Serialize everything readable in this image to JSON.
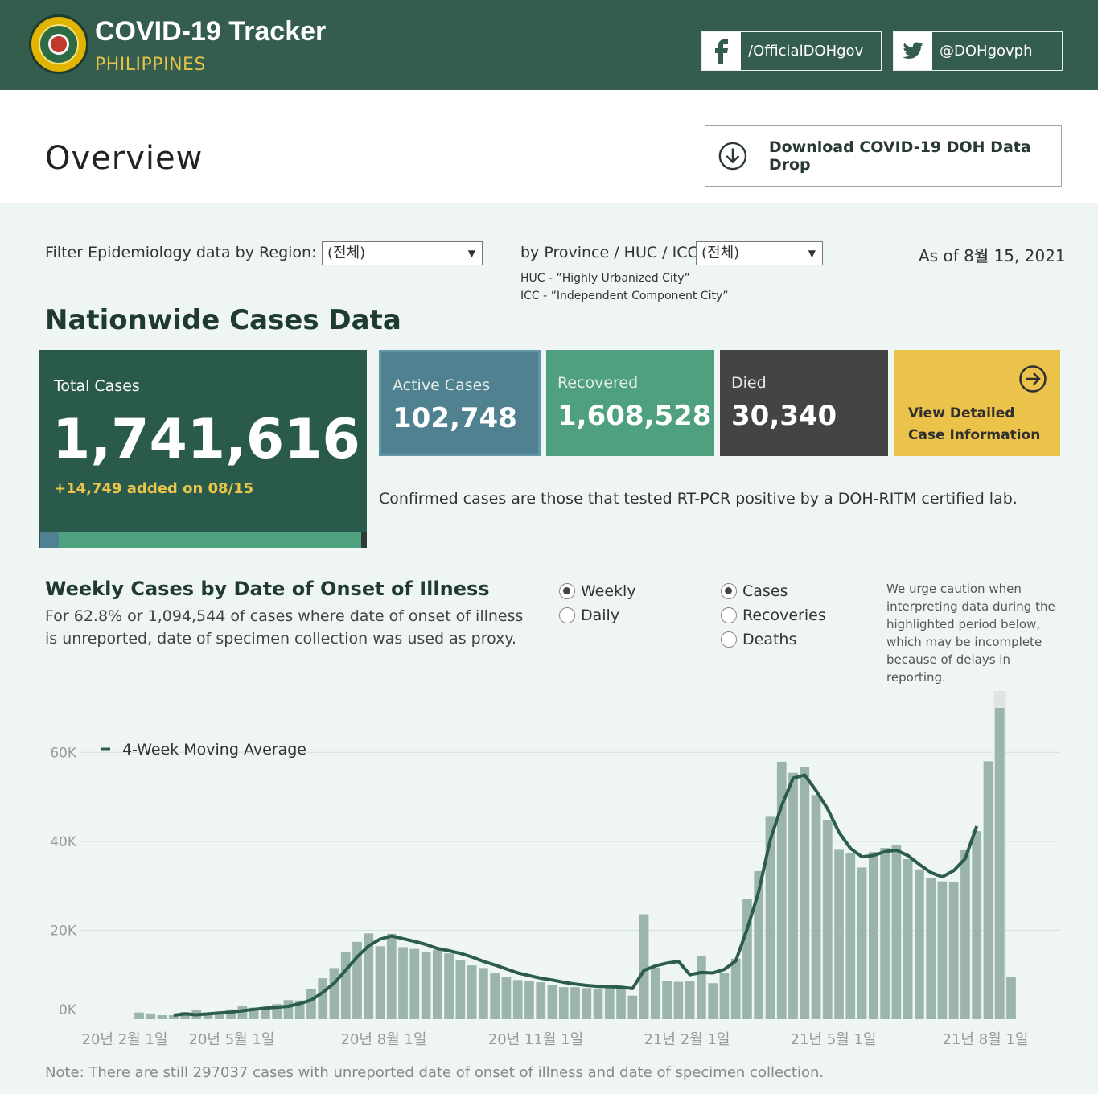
{
  "header": {
    "title": "COVID-19 Tracker",
    "subtitle": "PHILIPPINES",
    "facebook_label": "/OfficialDOHgov",
    "twitter_label": "@DOHgovph"
  },
  "overview": {
    "title": "Overview",
    "download_label": "Download COVID-19 DOH Data Drop"
  },
  "filters": {
    "region_label": "Filter Epidemiology data by Region:",
    "region_value": "(전체)",
    "province_label": "by Province / HUC / ICC:",
    "province_value": "(전체)",
    "huc_note": "HUC - ”Highly Urbanized City”",
    "icc_note": "ICC - ”Independent Component City”",
    "as_of": "As of 8월 15, 2021"
  },
  "nationwide": {
    "title": "Nationwide Cases Data",
    "total_label": "Total Cases",
    "total_value": "1,741,616",
    "added": "+14,749 added on 08/15",
    "active_label": "Active Cases",
    "active_value": "102,748",
    "recovered_label": "Recovered",
    "recovered_value": "1,608,528",
    "died_label": "Died",
    "died_value": "30,340",
    "detail_line1": "View Detailed",
    "detail_line2": "Case Information",
    "confirmed_note": "Confirmed cases are those that tested RT-PCR positive by a DOH-RITM certified lab.",
    "colors": {
      "total": "#295a4c",
      "active": "#4f8190",
      "recovered": "#4ea07e",
      "died": "#444444",
      "detail": "#ebc24a"
    }
  },
  "weekly": {
    "title": "Weekly Cases by Date of Onset of Illness",
    "description": "For 62.8% or 1,094,544 of cases where date of onset of illness is unreported, date of specimen collection was used as proxy.",
    "period_options": [
      {
        "label": "Weekly",
        "selected": true
      },
      {
        "label": "Daily",
        "selected": false
      }
    ],
    "metric_options": [
      {
        "label": "Cases",
        "selected": true
      },
      {
        "label": "Recoveries",
        "selected": false
      },
      {
        "label": "Deaths",
        "selected": false
      }
    ],
    "caution": "We urge caution when interpreting data during the highlighted period below, which may be incomplete because of delays in reporting.",
    "note": "Note: There are still 297037 cases with unreported date of onset of illness and date of specimen collection."
  },
  "chart_data": {
    "type": "bar",
    "legend": "4-Week Moving Average",
    "x_tick_labels": [
      "20년 2월 1일",
      "20년 5월 1일",
      "20년 8월 1일",
      "20년 11월 1일",
      "21년 2월 1일",
      "21년 5월 1일",
      "21년 8월 1일"
    ],
    "y_tick_labels": [
      "0K",
      "20K",
      "40K",
      "60K"
    ],
    "ylim": [
      0,
      70000
    ],
    "grid": true,
    "bar_color": "#9bb5ac",
    "line_color": "#2c5c4a",
    "values": [
      1500,
      1300,
      900,
      900,
      1600,
      2000,
      1000,
      1300,
      2200,
      2900,
      2600,
      2700,
      3400,
      4300,
      4200,
      6800,
      9200,
      11500,
      15200,
      17400,
      19300,
      16400,
      19200,
      16200,
      15800,
      15200,
      15600,
      14800,
      13300,
      12100,
      11500,
      10300,
      9400,
      8800,
      8600,
      8300,
      7700,
      7200,
      7200,
      7000,
      6900,
      7000,
      7000,
      5300,
      23600,
      11600,
      8600,
      8400,
      8600,
      14300,
      8100,
      10500,
      13600,
      27000,
      33300,
      45500,
      57900,
      55400,
      56700,
      50400,
      44800,
      38100,
      37400,
      34100,
      37600,
      38500,
      39200,
      36000,
      33700,
      31700,
      31000,
      30900,
      38000,
      42300,
      58000,
      70000,
      9400
    ],
    "moving_average": [
      null,
      null,
      null,
      900,
      1200,
      1000,
      1200,
      1400,
      1600,
      1900,
      2200,
      2500,
      2700,
      2900,
      3500,
      4300,
      6000,
      8100,
      11000,
      14000,
      16500,
      18000,
      18700,
      18100,
      17500,
      16800,
      15900,
      15400,
      14800,
      14000,
      13000,
      12200,
      11300,
      10400,
      9800,
      9200,
      8800,
      8300,
      7900,
      7600,
      7400,
      7300,
      7200,
      6900,
      11000,
      12000,
      12600,
      13000,
      10000,
      10500,
      10400,
      11200,
      13100,
      20300,
      28700,
      40300,
      48000,
      54200,
      54900,
      51400,
      47300,
      42000,
      38400,
      36500,
      36800,
      37700,
      38000,
      36800,
      34800,
      33000,
      32000,
      33400,
      36100,
      43400,
      null,
      null,
      null
    ],
    "highlighted_period_last_weeks": 2
  }
}
